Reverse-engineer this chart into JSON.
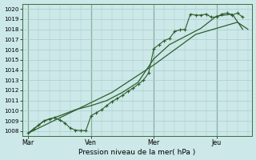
{
  "title": "",
  "xlabel": "Pression niveau de la mer( hPa )",
  "ylabel": "",
  "bg_color": "#cce8e8",
  "grid_color": "#aacccc",
  "line_color": "#2d5e2d",
  "ylim": [
    1007.5,
    1020.5
  ],
  "day_labels": [
    "Mar",
    "Ven",
    "Mer",
    "Jeu"
  ],
  "day_positions": [
    0,
    3,
    6,
    9
  ],
  "series1_x": [
    0.0,
    0.25,
    0.5,
    0.75,
    1.0,
    1.25,
    1.5,
    1.75,
    2.0,
    2.25,
    2.5,
    2.75,
    3.0,
    3.25,
    3.5,
    3.75,
    4.0,
    4.25,
    4.5,
    4.75,
    5.0,
    5.25,
    5.5,
    5.75,
    6.0,
    6.25,
    6.5,
    6.75,
    7.0,
    7.25,
    7.5,
    7.75,
    8.0,
    8.25,
    8.5,
    8.75,
    9.0,
    9.25,
    9.5,
    9.75,
    10.0,
    10.25
  ],
  "series1_y": [
    1007.8,
    1008.2,
    1008.6,
    1009.0,
    1009.2,
    1009.3,
    1009.1,
    1008.8,
    1008.3,
    1008.1,
    1008.05,
    1008.05,
    1009.5,
    1009.8,
    1010.1,
    1010.5,
    1010.9,
    1011.2,
    1011.5,
    1011.9,
    1012.2,
    1012.6,
    1013.0,
    1013.7,
    1016.1,
    1016.5,
    1016.9,
    1017.1,
    1017.8,
    1017.95,
    1018.0,
    1019.5,
    1019.4,
    1019.4,
    1019.5,
    1019.2,
    1019.2,
    1019.5,
    1019.6,
    1019.4,
    1019.6,
    1019.2
  ],
  "series2_x": [
    0.0,
    0.75,
    1.5,
    2.25,
    3.0,
    3.75,
    4.5,
    5.25,
    6.0,
    6.75,
    7.5,
    8.25,
    9.0,
    9.75,
    10.25
  ],
  "series2_y": [
    1007.8,
    1009.0,
    1009.5,
    1010.1,
    1010.5,
    1011.0,
    1011.8,
    1012.8,
    1015.1,
    1016.5,
    1017.3,
    1018.1,
    1019.3,
    1019.5,
    1018.0
  ],
  "series3_x": [
    0.0,
    2.0,
    4.0,
    6.0,
    8.0,
    10.0,
    10.5
  ],
  "series3_y": [
    1007.8,
    1009.8,
    1011.8,
    1014.5,
    1017.5,
    1018.7,
    1018.0
  ],
  "xlim": [
    -0.3,
    10.7
  ]
}
